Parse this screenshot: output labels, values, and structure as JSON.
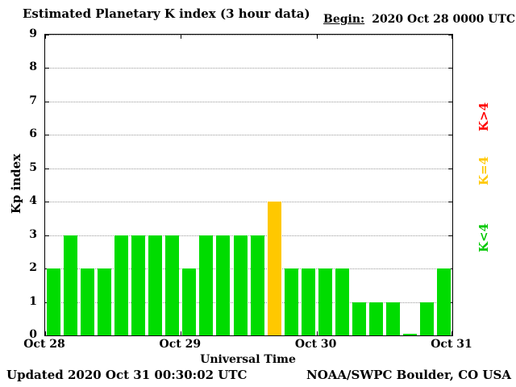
{
  "header": {
    "title": "Estimated Planetary K index (3 hour data)",
    "begin_label": "Begin:",
    "begin_value": "2020 Oct 28 0000 UTC"
  },
  "footer": {
    "updated": "Updated 2020 Oct 31 00:30:02 UTC",
    "source": "NOAA/SWPC Boulder, CO USA"
  },
  "chart_data": {
    "type": "bar",
    "title": "Estimated Planetary K index (3 hour data)",
    "xlabel": "Universal Time",
    "ylabel": "Kp index",
    "ylim": [
      0,
      9
    ],
    "yticks": [
      0,
      1,
      2,
      3,
      4,
      5,
      6,
      7,
      8,
      9
    ],
    "x_day_labels": [
      "Oct 28",
      "Oct 29",
      "Oct 30",
      "Oct 31"
    ],
    "bar_interval_hours": 3,
    "values": [
      2,
      3,
      2,
      2,
      3,
      3,
      3,
      3,
      2,
      3,
      3,
      3,
      3,
      4,
      2,
      2,
      2,
      2,
      1,
      1,
      1,
      0,
      1,
      2
    ],
    "colors": {
      "below4": "#00dc00",
      "equal4": "#ffc800",
      "above4": "#ff0000"
    },
    "legend": [
      {
        "label": "K>4",
        "color": "#ff0000"
      },
      {
        "label": "K=4",
        "color": "#ffc800"
      },
      {
        "label": "K<4",
        "color": "#00c800"
      }
    ],
    "grid": "horizontal-dotted",
    "legend_position": "right"
  }
}
